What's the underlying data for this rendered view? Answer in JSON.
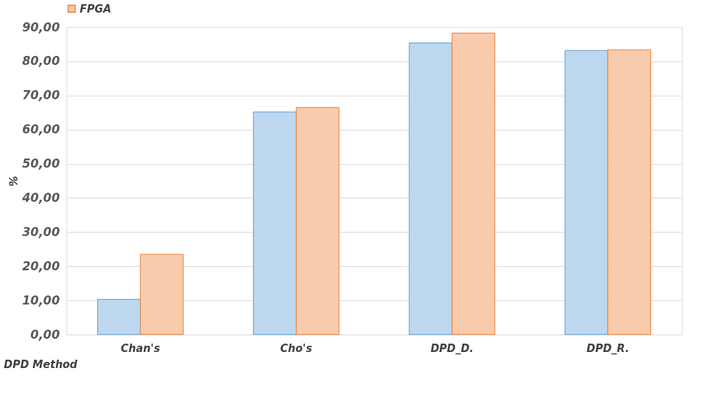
{
  "chart_data": {
    "type": "bar",
    "xlabel": "DPD Method",
    "ylabel": "%",
    "categories": [
      "Chan's",
      "Cho's",
      "DPD_D.",
      "DPD_R."
    ],
    "series": [
      {
        "color": "#bdd7ee",
        "values": [
          10.3,
          65.2,
          85.4,
          83.2
        ]
      },
      {
        "name": "FPGA",
        "color": "#f8cbad",
        "values": [
          23.5,
          66.5,
          88.3,
          83.4
        ]
      }
    ],
    "ylim": [
      0,
      90
    ],
    "yticks": [
      {
        "value": 0,
        "label": "0,00"
      },
      {
        "value": 10,
        "label": "10,00"
      },
      {
        "value": 20,
        "label": "20,00"
      },
      {
        "value": 30,
        "label": "30,00"
      },
      {
        "value": 40,
        "label": "40,00"
      },
      {
        "value": 50,
        "label": "50,00"
      },
      {
        "value": 60,
        "label": "60,00"
      },
      {
        "value": 70,
        "label": "70,00"
      },
      {
        "value": 80,
        "label": "80,00"
      },
      {
        "value": 90,
        "label": "90,00"
      }
    ],
    "grid": "y",
    "legend": "top"
  }
}
